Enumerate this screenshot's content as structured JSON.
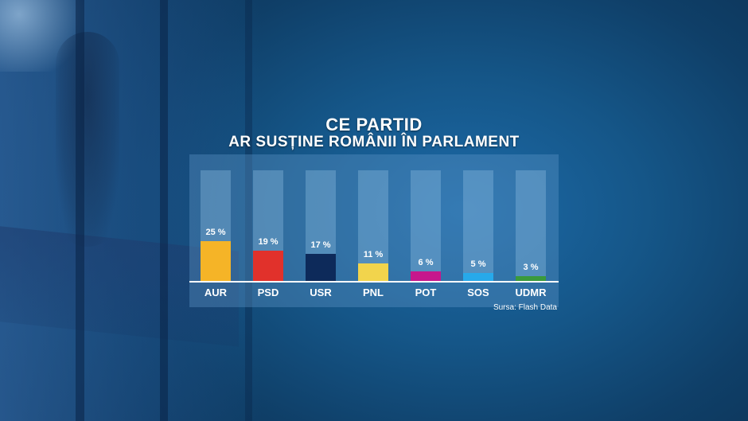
{
  "title": "CE PARTID",
  "subtitle": "AR SUSȚINE ROMÂNII ÎN PARLAMENT",
  "source": "Sursa: Flash Data",
  "chart_data": {
    "type": "bar",
    "title": "CE PARTID",
    "subtitle": "AR SUSȚINE ROMÂNII ÎN PARLAMENT",
    "categories": [
      "AUR",
      "PSD",
      "USR",
      "PNL",
      "POT",
      "SOS",
      "UDMR"
    ],
    "values": [
      25,
      19,
      17,
      11,
      6,
      5,
      3
    ],
    "value_labels": [
      "25 %",
      "19 %",
      "17 %",
      "11 %",
      "6 %",
      "5 %",
      "3 %"
    ],
    "colors": [
      "#f5b427",
      "#e1312b",
      "#0d2a5a",
      "#f2d44c",
      "#c6178c",
      "#27a9ea",
      "#3a9a3c"
    ],
    "unit": "%",
    "ylim": [
      0,
      100
    ],
    "grid": false,
    "legend": "none"
  }
}
